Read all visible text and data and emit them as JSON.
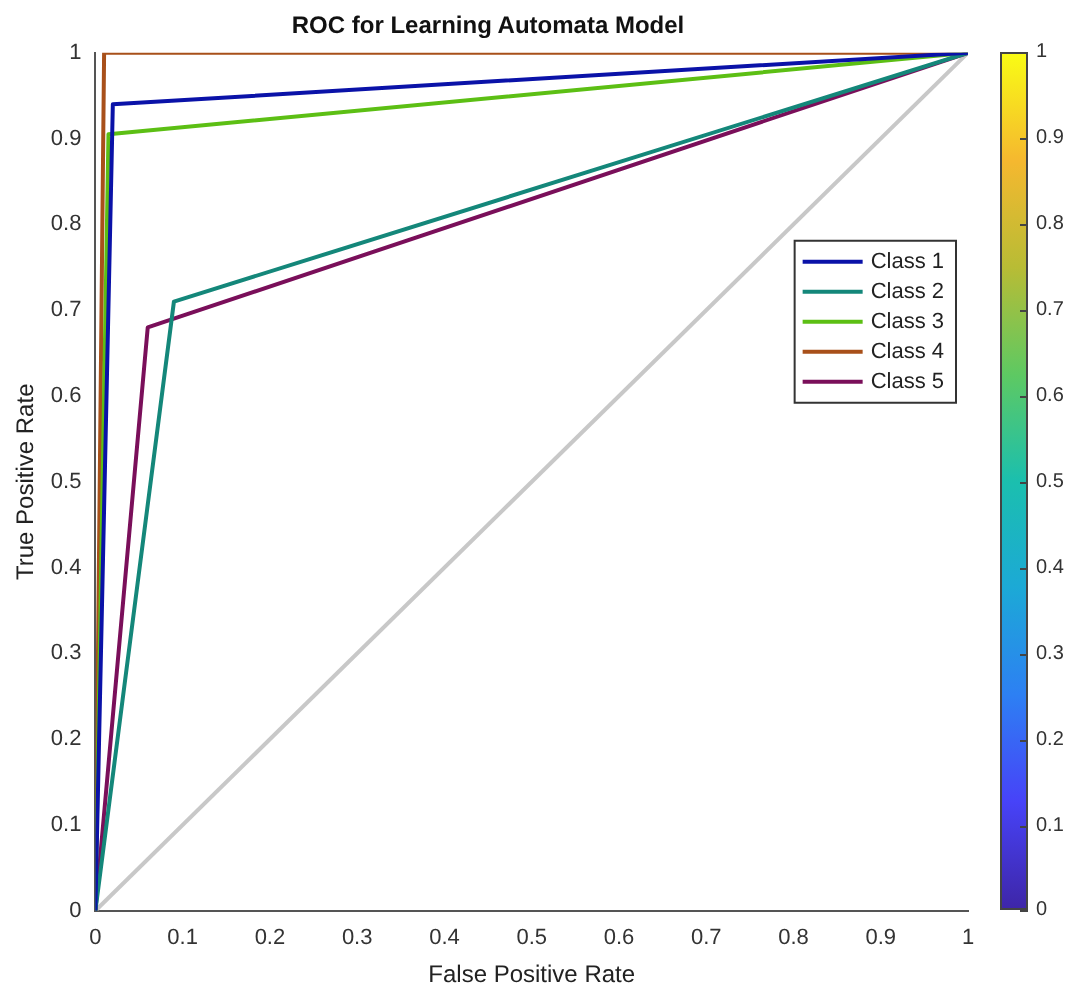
{
  "chart_data": {
    "type": "line",
    "title": "ROC for Learning Automata Model",
    "xlabel": "False Positive Rate",
    "ylabel": "True Positive Rate",
    "series": [
      {
        "name": "Class 1",
        "color": "#0a12a8",
        "x": [
          0,
          0.02,
          1
        ],
        "values": [
          0,
          0.94,
          1
        ]
      },
      {
        "name": "Class 2",
        "color": "#14877a",
        "x": [
          0,
          0.09,
          1
        ],
        "values": [
          0,
          0.71,
          1
        ]
      },
      {
        "name": "Class 3",
        "color": "#5cbf14",
        "x": [
          0,
          0.015,
          1
        ],
        "values": [
          0,
          0.905,
          1
        ]
      },
      {
        "name": "Class 4",
        "color": "#a8501a",
        "x": [
          0,
          0.01,
          1
        ],
        "values": [
          0,
          1,
          1
        ]
      },
      {
        "name": "Class 5",
        "color": "#7a0f5a",
        "x": [
          0,
          0.06,
          1
        ],
        "values": [
          0,
          0.68,
          1
        ]
      },
      {
        "color": "#c8c8c8",
        "x": [
          0,
          1
        ],
        "values": [
          0,
          1
        ]
      }
    ],
    "xlim": [
      0,
      1
    ],
    "ylim": [
      0,
      1
    ],
    "xticks": [
      0,
      0.1,
      0.2,
      0.3,
      0.4,
      0.5,
      0.6,
      0.7,
      0.8,
      0.9,
      1
    ],
    "yticks": [
      0,
      0.1,
      0.2,
      0.3,
      0.4,
      0.5,
      0.6,
      0.7,
      0.8,
      0.9,
      1
    ],
    "clim": [
      0,
      1
    ],
    "cticks": [
      0,
      0.1,
      0.2,
      0.3,
      0.4,
      0.5,
      0.6,
      0.7,
      0.8,
      0.9,
      1
    ],
    "grid": false,
    "legend": "right",
    "marker": "none",
    "line_style": "solid"
  }
}
